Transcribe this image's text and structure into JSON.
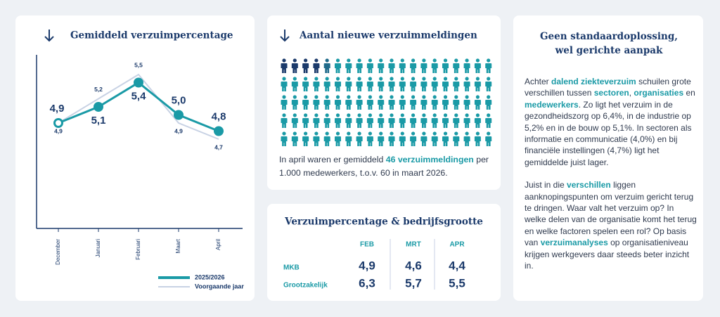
{
  "chart_data": {
    "type": "line",
    "title": "Gemiddeld verzuimpercentage",
    "categories": [
      "December",
      "Januari",
      "Februari",
      "Maart",
      "April"
    ],
    "series": [
      {
        "name": "2025/2026",
        "color": "#1a9aa6",
        "values": [
          4.9,
          5.1,
          5.4,
          5.0,
          4.8
        ],
        "value_labels": [
          "4,9",
          "5,1",
          "5,4",
          "5,0",
          "4,8"
        ]
      },
      {
        "name": "Voorgaande jaar",
        "color": "#c8d2e4",
        "values": [
          4.9,
          5.2,
          5.5,
          4.9,
          4.7
        ],
        "value_labels": [
          "4,9",
          "5,2",
          "5,5",
          "4,9",
          "4,7"
        ]
      }
    ]
  },
  "pictogram": {
    "title": "Aantal nieuwe verzuimmeldingen",
    "text": [
      "In april waren er gemiddeld ",
      "46 verzuimmeldingen",
      " per 1.000 medewerkers, t.o.v. 60 in maart 2026."
    ]
  },
  "table": {
    "title": "Verzuimpercentage & bedrijfsgrootte",
    "columns": [
      "FEB",
      "MRT",
      "APR"
    ],
    "rows": [
      [
        "MKB",
        "4,9",
        "4,6",
        "4,4"
      ],
      [
        "Grootzakelijk",
        "6,3",
        "5,7",
        "5,5"
      ]
    ]
  },
  "text_panel": {
    "title": [
      "Geen standaardoplossing,",
      "wel gerichte aanpak"
    ],
    "paragraphs": [
      [
        "Achter ",
        "dalend ziekteverzuim",
        " schuilen grote verschillen tussen ",
        "sectoren",
        ", ",
        "organisaties",
        " en ",
        "medewerkers",
        ". Zo ligt het verzuim in de gezondheidszorg op 6,4%, in de industrie op 5,2% en in de bouw op 5,1%. In sectoren als informatie en communicatie (4,0%) en bij financiële instellingen (4,7%) ligt het gemiddelde juist lager."
      ],
      [
        "Juist in die ",
        "verschillen",
        " liggen aanknopingspunten om verzuim gericht terug te dringen. Waar valt het verzuim op? In welke delen van de organisatie komt het terug en welke factoren spelen een rol? Op basis van ",
        "verzuimanalyses",
        " op organisatieniveau krijgen werkgevers daar steeds beter inzicht in."
      ]
    ]
  }
}
